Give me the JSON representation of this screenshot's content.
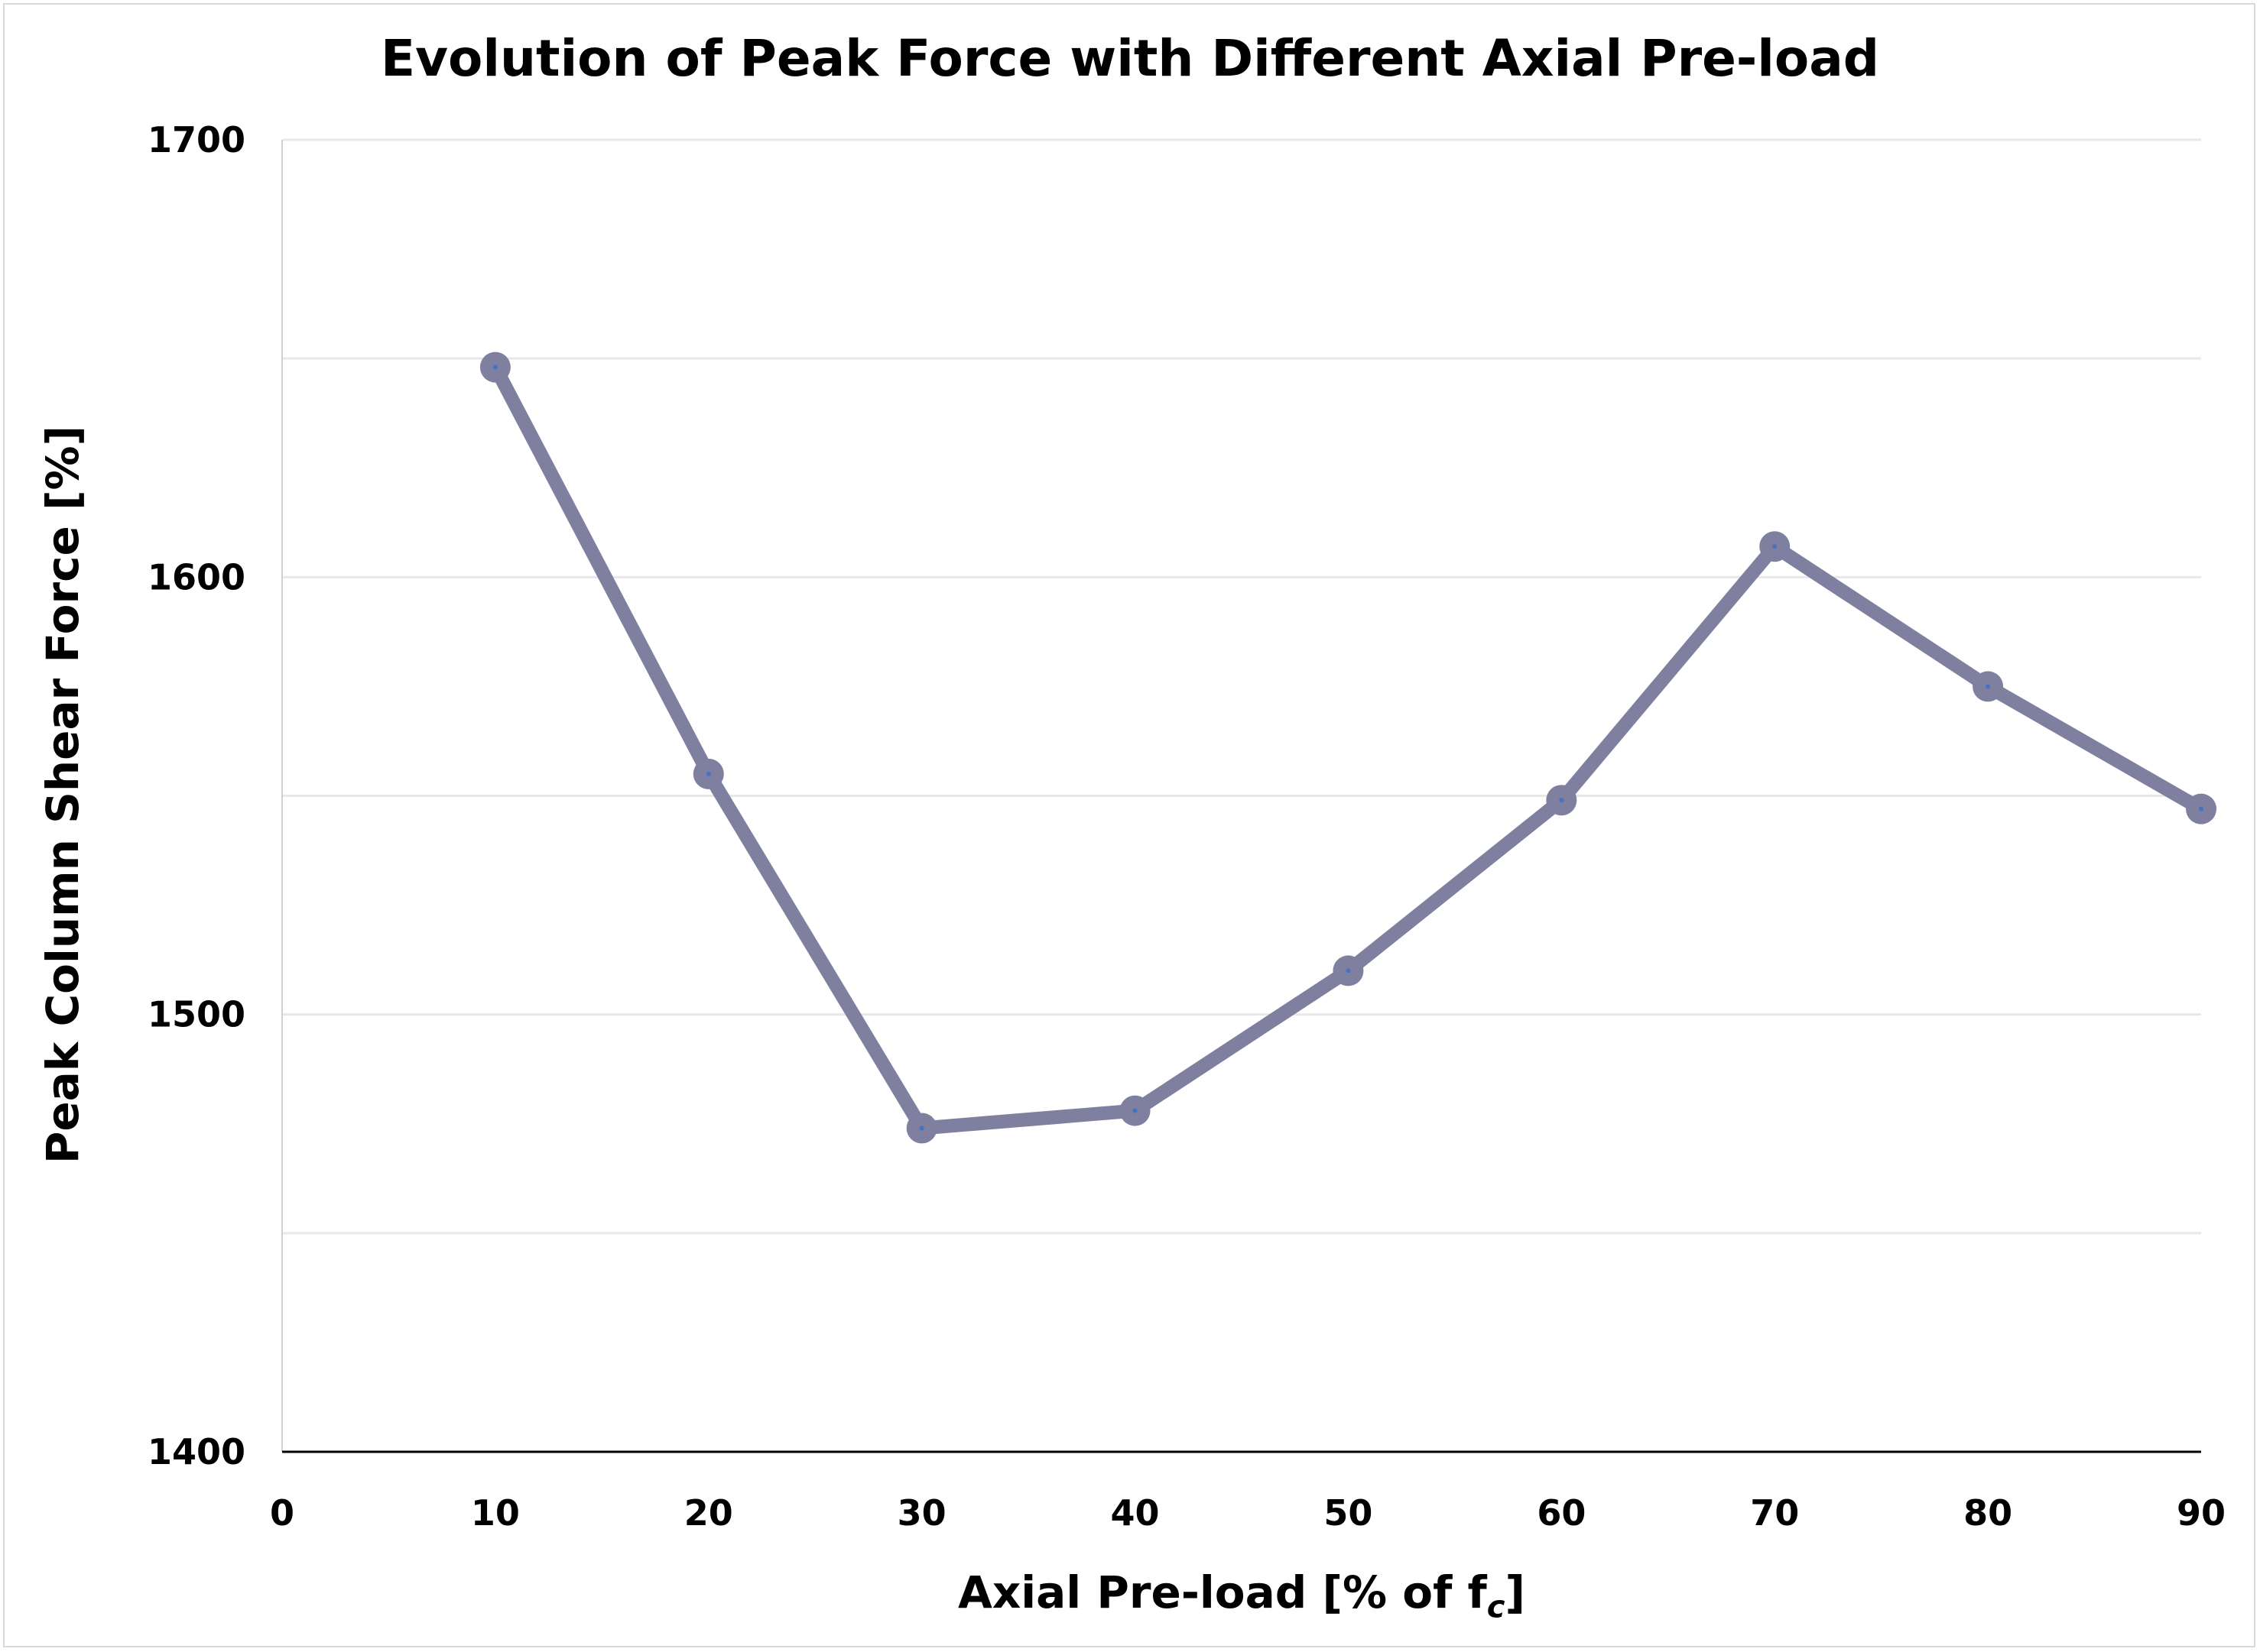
{
  "chart_data": {
    "type": "line",
    "title": "Evolution of Peak Force with Different Axial Pre-load",
    "xlabel": "Axial Pre-load [% of f",
    "xlabel_subscript": "c",
    "xlabel_suffix": "]",
    "ylabel": "Peak Column Shear Force [%]",
    "xlim": [
      0,
      90
    ],
    "ylim": [
      1400,
      1700
    ],
    "x_ticks": [
      0,
      10,
      20,
      30,
      40,
      50,
      60,
      70,
      80,
      90
    ],
    "y_ticks": [
      1400,
      1500,
      1600,
      1700
    ],
    "y_gridlines": [
      1450,
      1500,
      1550,
      1600,
      1650,
      1700
    ],
    "grid": true,
    "legend": "none",
    "series": [
      {
        "x": [
          10,
          20,
          30,
          40,
          50,
          60,
          70,
          80,
          90
        ],
        "y": [
          1648,
          1555,
          1474,
          1478,
          1510,
          1549,
          1607,
          1575,
          1547
        ],
        "color": "#7f7f9f",
        "marker_center_color": "#4472c4"
      }
    ]
  }
}
